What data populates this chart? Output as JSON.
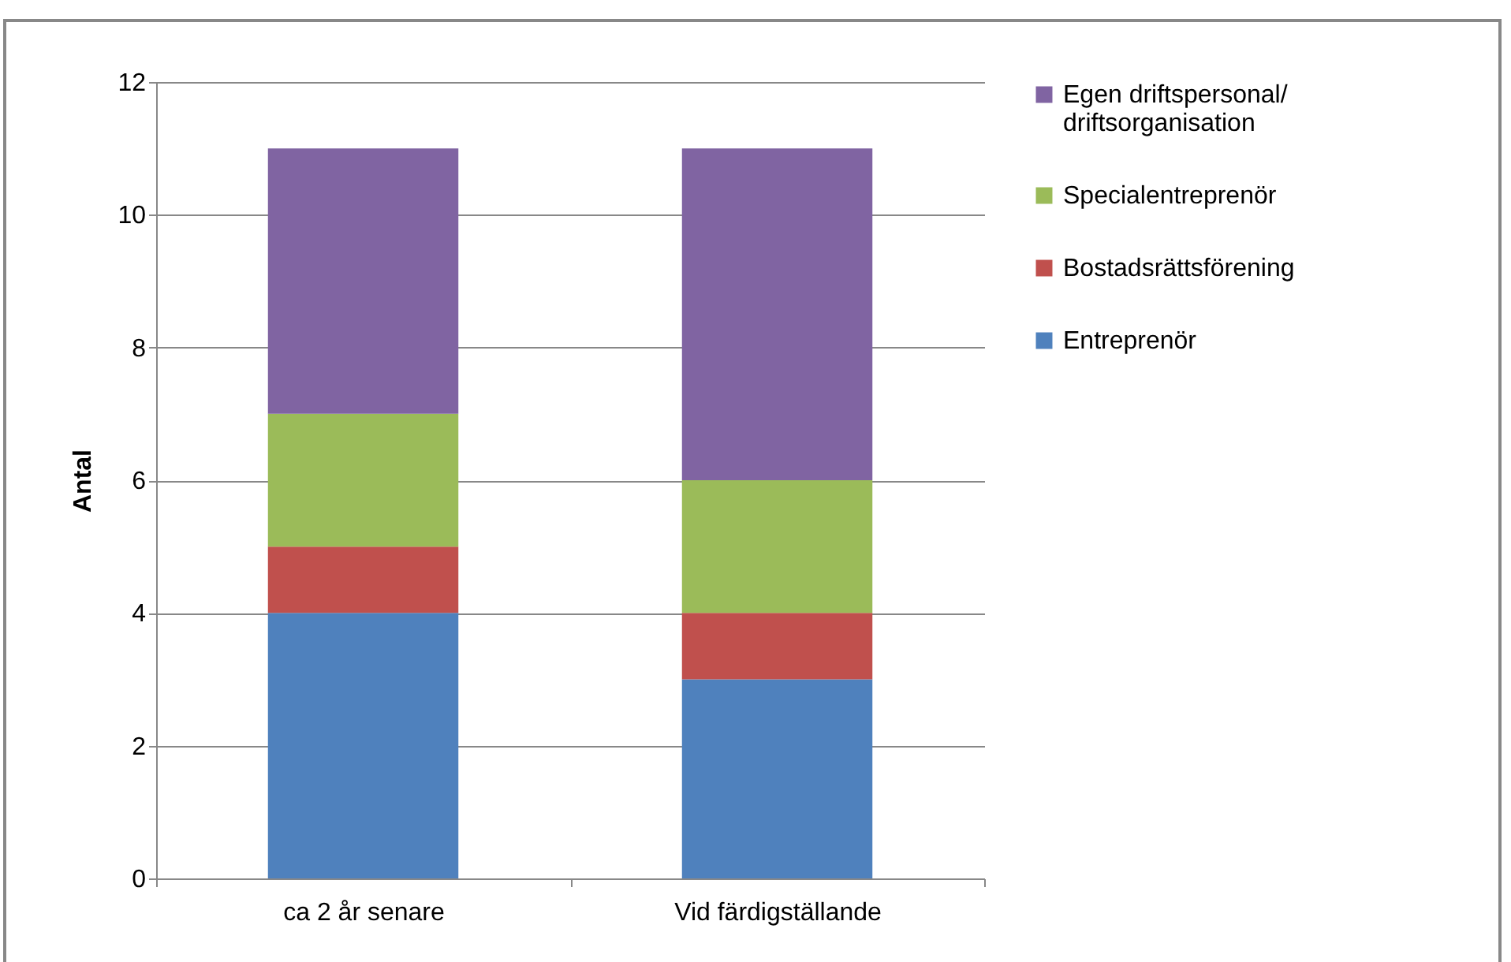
{
  "chart_data": {
    "type": "bar",
    "stacked": true,
    "ylabel": "Antal",
    "categories": [
      "ca 2 år senare",
      "Vid färdigställande"
    ],
    "series": [
      {
        "name": "Entreprenör",
        "color": "#4f81bd",
        "values": [
          4,
          3
        ]
      },
      {
        "name": "Bostadsrättsförening",
        "color": "#c0504d",
        "values": [
          1,
          1
        ]
      },
      {
        "name": "Specialentreprenör",
        "color": "#9bbb59",
        "values": [
          2,
          2
        ]
      },
      {
        "name": "Egen driftspersonal/\ndriftsorganisation",
        "color": "#8064a2",
        "values": [
          4,
          5
        ]
      }
    ],
    "ylim": [
      0,
      12
    ],
    "yticks": [
      0,
      2,
      4,
      6,
      8,
      10,
      12
    ],
    "grid": "y",
    "legend": "right"
  }
}
